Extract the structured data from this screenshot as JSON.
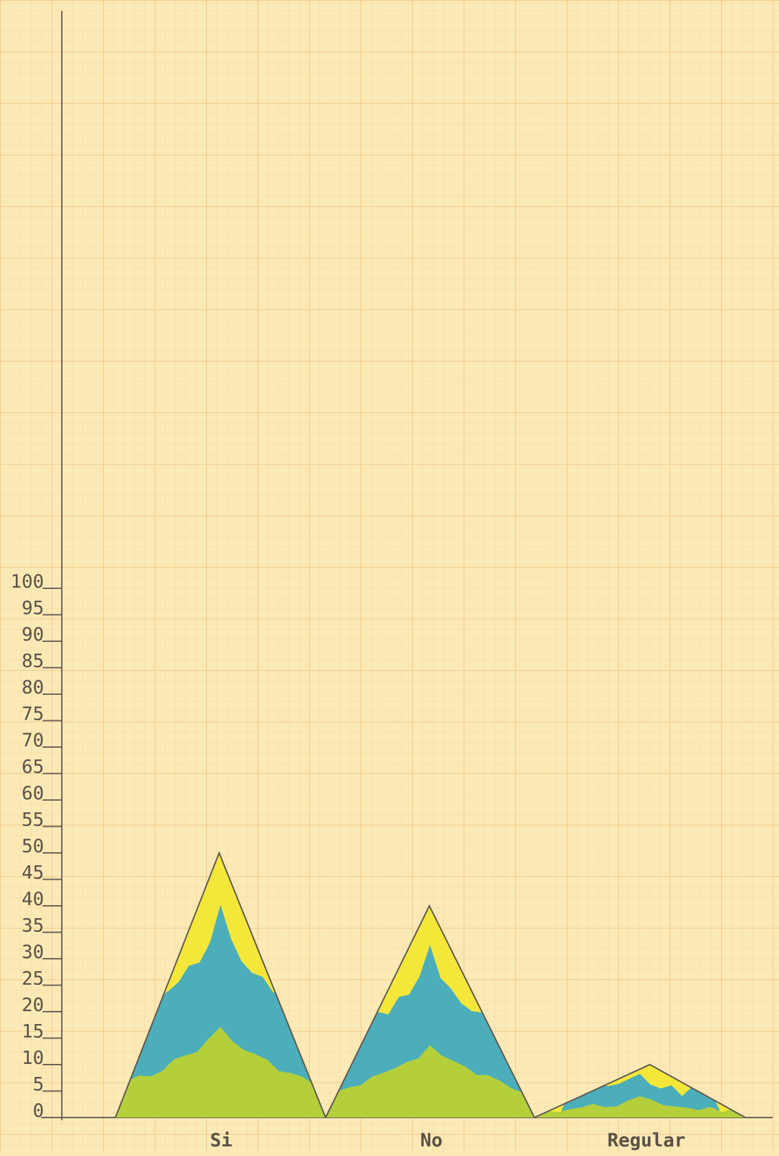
{
  "chart_data": {
    "type": "area",
    "subtype": "triangle-peaks",
    "background": "graph paper",
    "colors": {
      "paper": "#fbe9b6",
      "grid_minor": "#f6d99a",
      "grid_major": "#f1c37a",
      "axis": "#6b6258",
      "outline": "#5f574f",
      "yellow": "#f5e73a",
      "blue": "#3aa7c9",
      "green": "#b4cf3a"
    },
    "y_ticks": [
      "0",
      "5",
      "10",
      "15",
      "20",
      "25",
      "30",
      "35",
      "40",
      "45",
      "50",
      "55",
      "60",
      "65",
      "70",
      "75",
      "80",
      "85",
      "90",
      "95",
      "100"
    ],
    "ylim": [
      0,
      100
    ],
    "categories": [
      "Si",
      "No",
      "Regular"
    ],
    "values": [
      50,
      40,
      10
    ],
    "title": "",
    "xlabel": "",
    "ylabel": "",
    "grid": true,
    "legend": "none"
  }
}
